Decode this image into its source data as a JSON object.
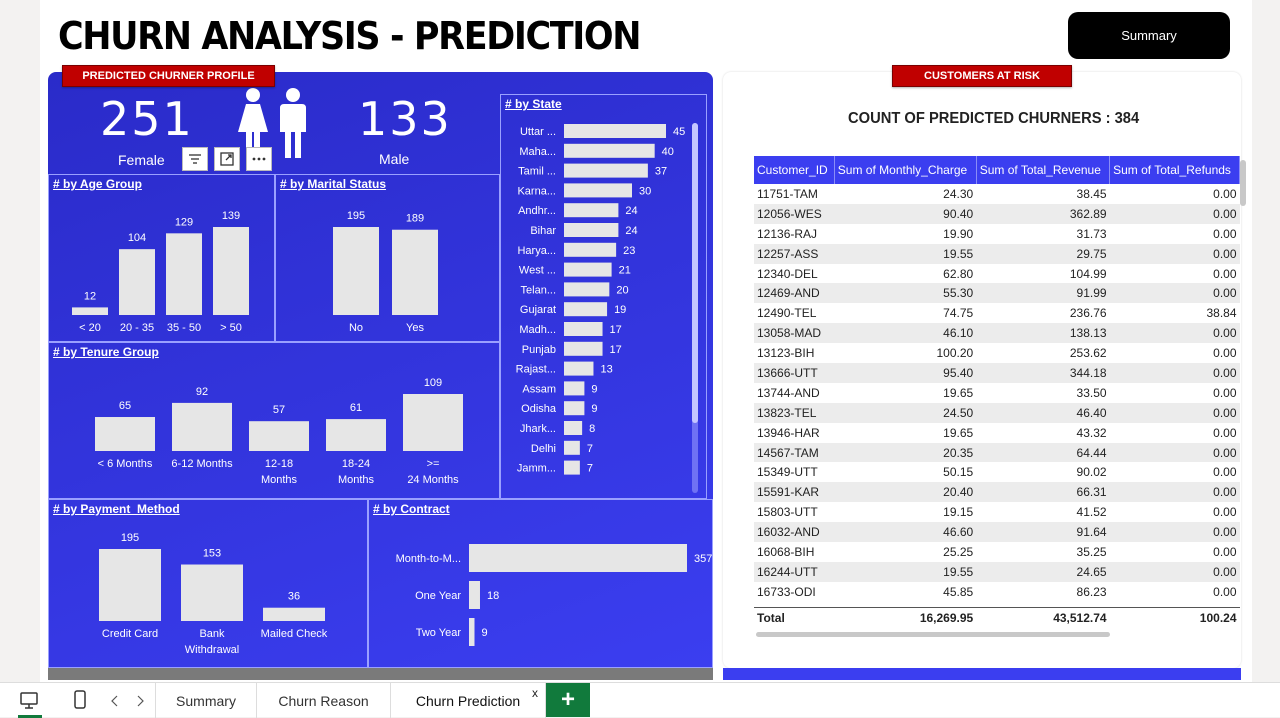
{
  "header": {
    "title": "CHURN ANALYSIS - PREDICTION",
    "summary_button": "Summary"
  },
  "profile": {
    "tag": "PREDICTED CHURNER PROFILE",
    "female_count": "251",
    "female_label": "Female",
    "male_count": "133",
    "male_label": "Male"
  },
  "age_group": {
    "title": "# by Age Group",
    "categories": [
      "< 20",
      "20 - 35",
      "35 - 50",
      "> 50"
    ],
    "values": [
      12,
      104,
      129,
      139
    ]
  },
  "marital_status": {
    "title": "# by Marital Status",
    "categories": [
      "No",
      "Yes"
    ],
    "values": [
      195,
      189
    ]
  },
  "tenure_group": {
    "title": "# by Tenure Group",
    "categories": [
      "< 6 Months",
      "6-12 Months",
      "12-18 Months",
      "18-24 Months",
      ">= 24 Months"
    ],
    "values": [
      65,
      92,
      57,
      61,
      109
    ]
  },
  "payment_method": {
    "title": "# by Payment_Method",
    "categories": [
      "Credit Card",
      "Bank Withdrawal",
      "Mailed Check"
    ],
    "values": [
      195,
      153,
      36
    ]
  },
  "contract": {
    "title": "# by Contract",
    "categories": [
      "Month-to-M...",
      "One Year",
      "Two Year"
    ],
    "values": [
      357,
      18,
      9
    ]
  },
  "state": {
    "title": "# by State",
    "categories": [
      "Uttar ...",
      "Maha...",
      "Tamil ...",
      "Karna...",
      "Andhr...",
      "Bihar",
      "Harya...",
      "West ...",
      "Telan...",
      "Gujarat",
      "Madh...",
      "Punjab",
      "Rajast...",
      "Assam",
      "Odisha",
      "Jhark...",
      "Delhi",
      "Jamm..."
    ],
    "values": [
      45,
      40,
      37,
      30,
      24,
      24,
      23,
      21,
      20,
      19,
      17,
      17,
      13,
      9,
      9,
      8,
      7,
      7
    ]
  },
  "at_risk": {
    "tag": "CUSTOMERS AT RISK",
    "count_title": "COUNT OF PREDICTED CHURNERS : 384",
    "columns": [
      "Customer_ID",
      "Sum of Monthly_Charge",
      "Sum of Total_Revenue",
      "Sum of Total_Refunds"
    ],
    "rows": [
      [
        "11751-TAM",
        "24.30",
        "38.45",
        "0.00"
      ],
      [
        "12056-WES",
        "90.40",
        "362.89",
        "0.00"
      ],
      [
        "12136-RAJ",
        "19.90",
        "31.73",
        "0.00"
      ],
      [
        "12257-ASS",
        "19.55",
        "29.75",
        "0.00"
      ],
      [
        "12340-DEL",
        "62.80",
        "104.99",
        "0.00"
      ],
      [
        "12469-AND",
        "55.30",
        "91.99",
        "0.00"
      ],
      [
        "12490-TEL",
        "74.75",
        "236.76",
        "38.84"
      ],
      [
        "13058-MAD",
        "46.10",
        "138.13",
        "0.00"
      ],
      [
        "13123-BIH",
        "100.20",
        "253.62",
        "0.00"
      ],
      [
        "13666-UTT",
        "95.40",
        "344.18",
        "0.00"
      ],
      [
        "13744-AND",
        "19.65",
        "33.50",
        "0.00"
      ],
      [
        "13823-TEL",
        "24.50",
        "46.40",
        "0.00"
      ],
      [
        "13946-HAR",
        "19.65",
        "43.32",
        "0.00"
      ],
      [
        "14567-TAM",
        "20.35",
        "64.44",
        "0.00"
      ],
      [
        "15349-UTT",
        "50.15",
        "90.02",
        "0.00"
      ],
      [
        "15591-KAR",
        "20.40",
        "66.31",
        "0.00"
      ],
      [
        "15803-UTT",
        "19.15",
        "41.52",
        "0.00"
      ],
      [
        "16032-AND",
        "46.60",
        "91.64",
        "0.00"
      ],
      [
        "16068-BIH",
        "25.25",
        "35.25",
        "0.00"
      ],
      [
        "16244-UTT",
        "19.55",
        "24.65",
        "0.00"
      ],
      [
        "16733-ODI",
        "45.85",
        "86.23",
        "0.00"
      ]
    ],
    "total": [
      "Total",
      "16,269.95",
      "43,512.74",
      "100.24"
    ]
  },
  "tabs": {
    "summary": "Summary",
    "churn_reason": "Churn Reason",
    "churn_prediction": "Churn Prediction",
    "close": "x",
    "add": "+"
  },
  "icons": {
    "filter": "filter-icon",
    "focus": "focus-mode-icon",
    "more": "more-options-icon"
  }
}
